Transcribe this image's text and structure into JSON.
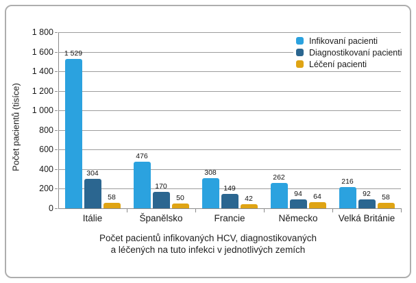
{
  "chart_data": {
    "type": "bar",
    "caption_line1": "Počet pacientů infikovaných HCV, diagnostikovaných",
    "caption_line2": "a léčených na tuto infekci v jednotlivých zemích",
    "ylabel": "Počet pacientů (tisíce)",
    "ylim": [
      0,
      1800
    ],
    "ytick_step": 200,
    "ytick_labels": [
      "0",
      "200",
      "400",
      "600",
      "800",
      "1 000",
      "1 200",
      "1 400",
      "1 600",
      "1 800"
    ],
    "grid": true,
    "legend_position": "top-right-inside",
    "categories": [
      "Itálie",
      "Španělsko",
      "Francie",
      "Německo",
      "Velká Británie"
    ],
    "series": [
      {
        "name": "Infikovaní pacienti",
        "color": "#2ba2df",
        "values": [
          1529,
          476,
          308,
          262,
          216
        ],
        "value_labels": [
          "1 529",
          "476",
          "308",
          "262",
          "216"
        ]
      },
      {
        "name": "Diagnostikovaní pacienti",
        "color": "#2b6690",
        "values": [
          304,
          170,
          149,
          94,
          92
        ],
        "value_labels": [
          "304",
          "170",
          "149",
          "94",
          "92"
        ]
      },
      {
        "name": "Léčení pacienti",
        "color": "#dfa414",
        "values": [
          58,
          50,
          42,
          64,
          58
        ],
        "value_labels": [
          "58",
          "50",
          "42",
          "64",
          "58"
        ]
      }
    ],
    "grid_color": "#9c9c9c",
    "axis_color": "#8a8a8a"
  }
}
